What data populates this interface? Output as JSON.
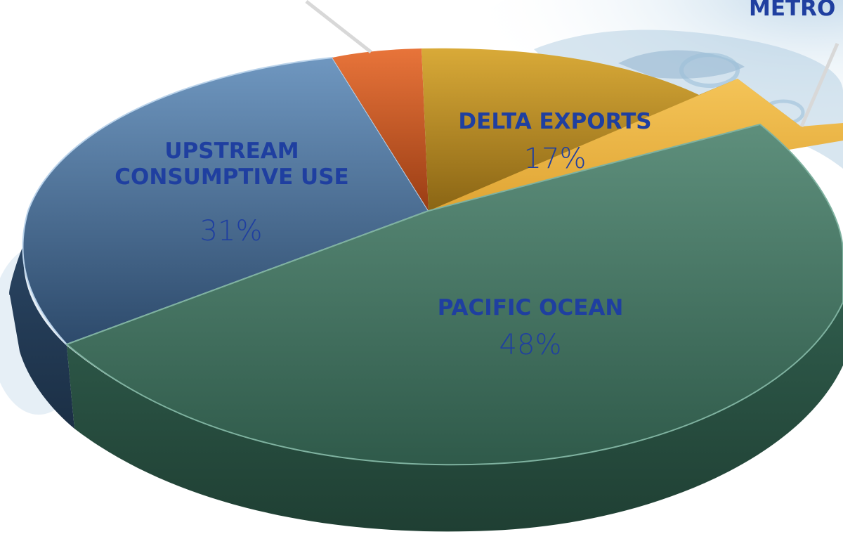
{
  "chart_data": {
    "type": "pie",
    "style": "3d",
    "slices": [
      {
        "name": "PACIFIC OCEAN",
        "value": 48,
        "label": "48%",
        "color": "#4c7f6b"
      },
      {
        "name": "UPSTREAM CONSUMPTIVE USE",
        "value": 31,
        "label": "31%",
        "color": "#557a9f"
      },
      {
        "name": "",
        "value": 4,
        "label": "",
        "color": "#d8642a"
      },
      {
        "name": "DELTA EXPORTS",
        "value": 17,
        "label": "17%",
        "color": "#c79a2c"
      },
      {
        "name": "METRO",
        "value": 3,
        "label": "",
        "color": "#eab645"
      }
    ],
    "labels": {
      "upstream_line1": "UPSTREAM",
      "upstream_line2": "CONSUMPTIVE USE",
      "upstream_pct": "31%",
      "delta_name": "DELTA EXPORTS",
      "delta_pct": "17%",
      "pacific_name": "PACIFIC OCEAN",
      "pacific_pct": "48%",
      "metro_name": "METRO"
    }
  }
}
